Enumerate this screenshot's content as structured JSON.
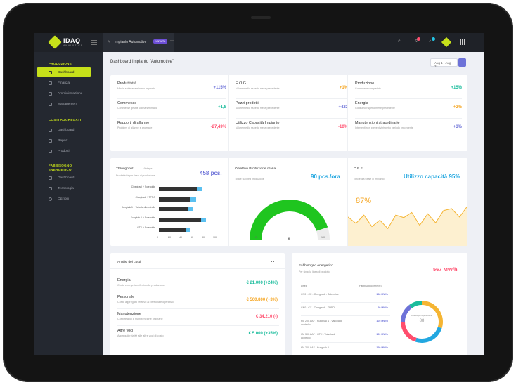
{
  "brand": {
    "name": "iDAQ",
    "sub": "ANALYTICS"
  },
  "topbar": {
    "tab_label": "Impianto Automotive",
    "tab_badge": "VARIATA",
    "tab_close": "—",
    "badge_red": "1",
    "badge_cyan": "1"
  },
  "sidebar": {
    "sections": [
      {
        "label": "PRODUZIONE",
        "items": [
          "Dashboard",
          "Finanza",
          "Amministrazione",
          "Management"
        ]
      },
      {
        "label": "COSTI AGGREGATI",
        "items": [
          "Dashboard",
          "Report",
          "Prodotti"
        ]
      },
      {
        "label": "FABBISOGNO ENERGETICO",
        "items": [
          "Dashboard",
          "Tecnologia",
          "Opzioni"
        ]
      }
    ]
  },
  "page": {
    "title": "Dashboard Impianto \"Automotive\"",
    "date_range": "Aug 1 - Aug 31"
  },
  "kpis": [
    {
      "label": "Produttività",
      "sub": "Media settimanale intero impianto",
      "value": "+115%",
      "color": "#6d72d8"
    },
    {
      "label": "Commesse",
      "sub": "Commesse gestite ultima settimana",
      "value": "+1,8",
      "color": "#1abc9c"
    },
    {
      "label": "Rapporti di allarme",
      "sub": "Problemi di allarme e anomalie",
      "value": "-27,49%",
      "color": "#ff4d6d"
    },
    {
      "label": "E.O.G.",
      "sub": "Valore medio rispetto mese precedente",
      "value": "+1%",
      "color": "#f5a623"
    },
    {
      "label": "Pezzi prodotti",
      "sub": "Valore medio rispetto mese precedente",
      "value": "+423",
      "color": "#6d72d8"
    },
    {
      "label": "Utilizzo Capacità Impianto",
      "sub": "Valore medio rispetto mese precedente",
      "value": "-10%",
      "color": "#ff4d6d"
    },
    {
      "label": "Produzione",
      "sub": "Commesse completate",
      "value": "+15%",
      "color": "#1abc9c"
    },
    {
      "label": "Energia",
      "sub": "Consumo rispetto mese precedente",
      "value": "+2%",
      "color": "#f5a623"
    },
    {
      "label": "Manutenzioni straordinarie",
      "sub": "Interventi non preventivi rispetto periodo precedente",
      "value": "+3%",
      "color": "#6d72d8"
    }
  ],
  "throughput": {
    "title": "Throughput",
    "tag": "Vintage",
    "sub": "Produttività per linea di produzione",
    "value": "458 pcs."
  },
  "chart_data": [
    {
      "type": "bar",
      "title": "Throughput",
      "categories": [
        "Cinegiradi + Solenoide",
        "Cinegiradi + TPRO",
        "Kungbak 1 + Valvole di controllo",
        "Kungbak 1 + Solenoide",
        "GTX + Solenoide"
      ],
      "series": [
        {
          "name": "",
          "values": [
            68,
            55,
            52,
            75,
            49
          ]
        },
        {
          "name": "",
          "values": [
            9,
            11,
            9,
            9,
            6
          ]
        }
      ],
      "xlim": [
        0,
        100
      ],
      "xticks": [
        0,
        20,
        40,
        60,
        80,
        100
      ]
    },
    {
      "type": "pie",
      "title": "Obiettivo Produzione oraria",
      "values": [
        90,
        10
      ],
      "ticks": [
        "0",
        "100"
      ],
      "center_label": "90"
    },
    {
      "type": "area",
      "title": "O.E.E.",
      "values": [
        45,
        35,
        48,
        30,
        40,
        27,
        48,
        44,
        52,
        32,
        50,
        36,
        55,
        58,
        45,
        62
      ],
      "label": "87%"
    },
    {
      "type": "pie",
      "title": "Fabbisogno energetico",
      "values": [
        30,
        25,
        20,
        15,
        10
      ],
      "center_label": "88",
      "center_sub": "Fabbisogno di produzione"
    }
  ],
  "gauge": {
    "title": "Obiettivo Produzione oraria",
    "sub": "Totale su linea produzione",
    "value": "90 pcs./ora",
    "min": "0",
    "max": "100",
    "center": "90"
  },
  "oee": {
    "title": "O.E.E.",
    "sub": "Efficienza totale di impianto",
    "value": "Utilizzo capacità 95%",
    "label": "87%"
  },
  "costs": {
    "title": "Analisi dei costi",
    "more": "···",
    "rows": [
      {
        "label": "Energia",
        "sub": "Costo energetico riferito alla produzione",
        "value": "€ 21.000 (+24%)",
        "color": "#1abc9c"
      },
      {
        "label": "Personale",
        "sub": "Costo aggregato relativo al personale operativo",
        "value": "€ 560.800 (+3%)",
        "color": "#f5a623"
      },
      {
        "label": "Manutenzione",
        "sub": "Costi relativi a manutenzione ordinarie",
        "value": "€ 34.210 (-)",
        "color": "#ff4d6d"
      },
      {
        "label": "Altre voci",
        "sub": "Aggregati relativi alle altre voci di costo",
        "value": "€ 5.000 (+35%)",
        "color": "#1abc9c"
      }
    ]
  },
  "energy": {
    "title": "Fabbisogno energetico",
    "sub": "Per singola linea di prodotto",
    "value": "567 MW/h",
    "col1": "Linea",
    "col2": "Fabbisogno (MW/h)",
    "rows": [
      {
        "name": "CN0 - CX - Cinegiradi - Solenoide",
        "value": "128 MW/h"
      },
      {
        "name": "CN0 - CX - Cinegiradi - TPRO",
        "value": "20 MW/h"
      },
      {
        "name": "HV 200 AAF - Kungbak 1 - Valvola di controllo",
        "value": "105 MW/h"
      },
      {
        "name": "HV 300 AAF - GTX - Valvola di controllo",
        "value": "100 MW/h"
      },
      {
        "name": "HV 200 AAF - Kungbak 1",
        "value": "120 MW/h"
      }
    ],
    "donut_center": "88",
    "donut_sub": "Fabbisogno di produzione"
  }
}
